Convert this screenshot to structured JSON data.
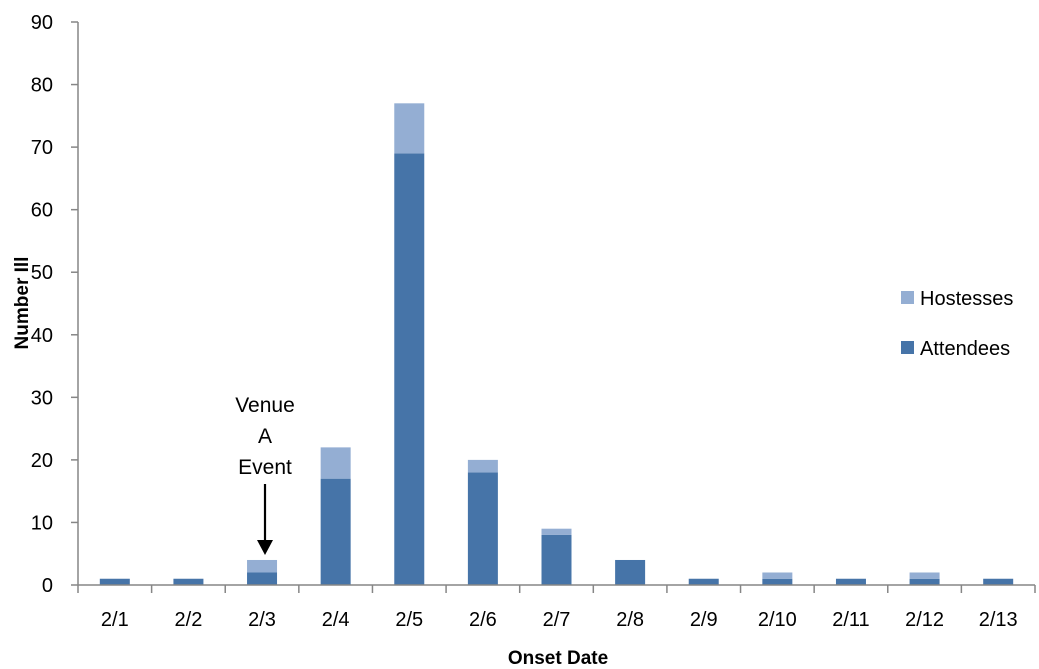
{
  "chart_data": {
    "type": "bar",
    "stacked": true,
    "categories": [
      "2/1",
      "2/2",
      "2/3",
      "2/4",
      "2/5",
      "2/6",
      "2/7",
      "2/8",
      "2/9",
      "2/10",
      "2/11",
      "2/12",
      "2/13"
    ],
    "series": [
      {
        "name": "Attendees",
        "color": "#4674a8",
        "values": [
          1,
          1,
          2,
          17,
          69,
          18,
          8,
          4,
          1,
          1,
          1,
          1,
          1
        ]
      },
      {
        "name": "Hostesses",
        "color": "#94aed3",
        "values": [
          0,
          0,
          2,
          5,
          8,
          2,
          1,
          0,
          0,
          1,
          0,
          1,
          0
        ]
      }
    ],
    "title": "",
    "xlabel": "Onset Date",
    "ylabel": "Number Ill",
    "ylim": [
      0,
      90
    ],
    "yticks": [
      0,
      10,
      20,
      30,
      40,
      50,
      60,
      70,
      80,
      90
    ],
    "grid": false,
    "legend_position": "right",
    "legend_order": [
      "Hostesses",
      "Attendees"
    ],
    "annotation": {
      "lines": [
        "Venue",
        "A",
        "Event"
      ],
      "target_category": "2/3",
      "arrow": "down"
    }
  }
}
